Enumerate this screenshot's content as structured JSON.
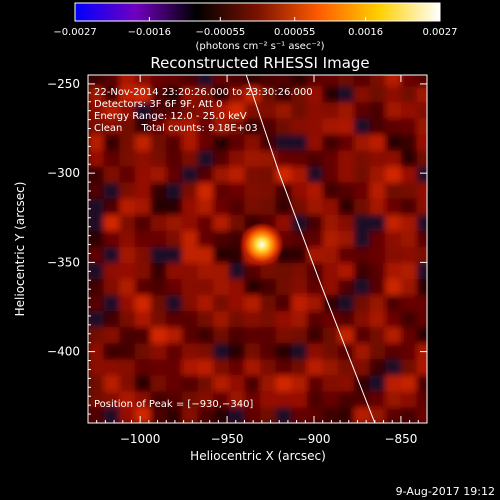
{
  "chart_data": {
    "type": "heatmap",
    "title": "Reconstructed RHESSI Image",
    "xlabel": "Heliocentric X (arcsec)",
    "ylabel": "Heliocentric Y (arcsec)",
    "xlim": [
      -1030,
      -835
    ],
    "ylim": [
      -440,
      -245
    ],
    "x_ticks": [
      -1000,
      -950,
      -900,
      -850
    ],
    "x_tick_labels": [
      "−1000",
      "−950",
      "−900",
      "−850"
    ],
    "y_ticks": [
      -250,
      -300,
      -350,
      -400
    ],
    "y_tick_labels": [
      "−250",
      "−300",
      "−350",
      "−400"
    ],
    "colorbar": {
      "range": [
        -0.0027,
        0.0027
      ],
      "ticks": [
        -0.0027,
        -0.0016,
        -0.00055,
        0.00055,
        0.0016,
        0.0027
      ],
      "tick_labels": [
        "−0.0027",
        "−0.0016",
        "−0.00055",
        "0.00055",
        "0.0016",
        "0.0027"
      ],
      "unit_label": "(photons cm⁻² s⁻¹ asec⁻²)",
      "colors": [
        "#0000ff",
        "#7000c0",
        "#000000",
        "#7a1200",
        "#ff5a00",
        "#ffd000",
        "#ffffff"
      ]
    },
    "annotations": [
      "22-Nov-2014 23:20:26.000 to 23:30:26.000",
      "Detectors: 3F 6F 9F, Att 0",
      "Energy Range: 12.0 - 25.0 keV",
      "Clean      Total counts: 9.18E+03"
    ],
    "peak_label": "Position of Peak = [−930,−340]",
    "peak": {
      "x": -930,
      "y": -340
    },
    "limb_curve": [
      {
        "x": -939,
        "y": -245
      },
      {
        "x": -920,
        "y": -300
      },
      {
        "x": -897,
        "y": -360
      },
      {
        "x": -865,
        "y": -440
      }
    ],
    "footer_date": "9-Aug-2017 19:12"
  }
}
